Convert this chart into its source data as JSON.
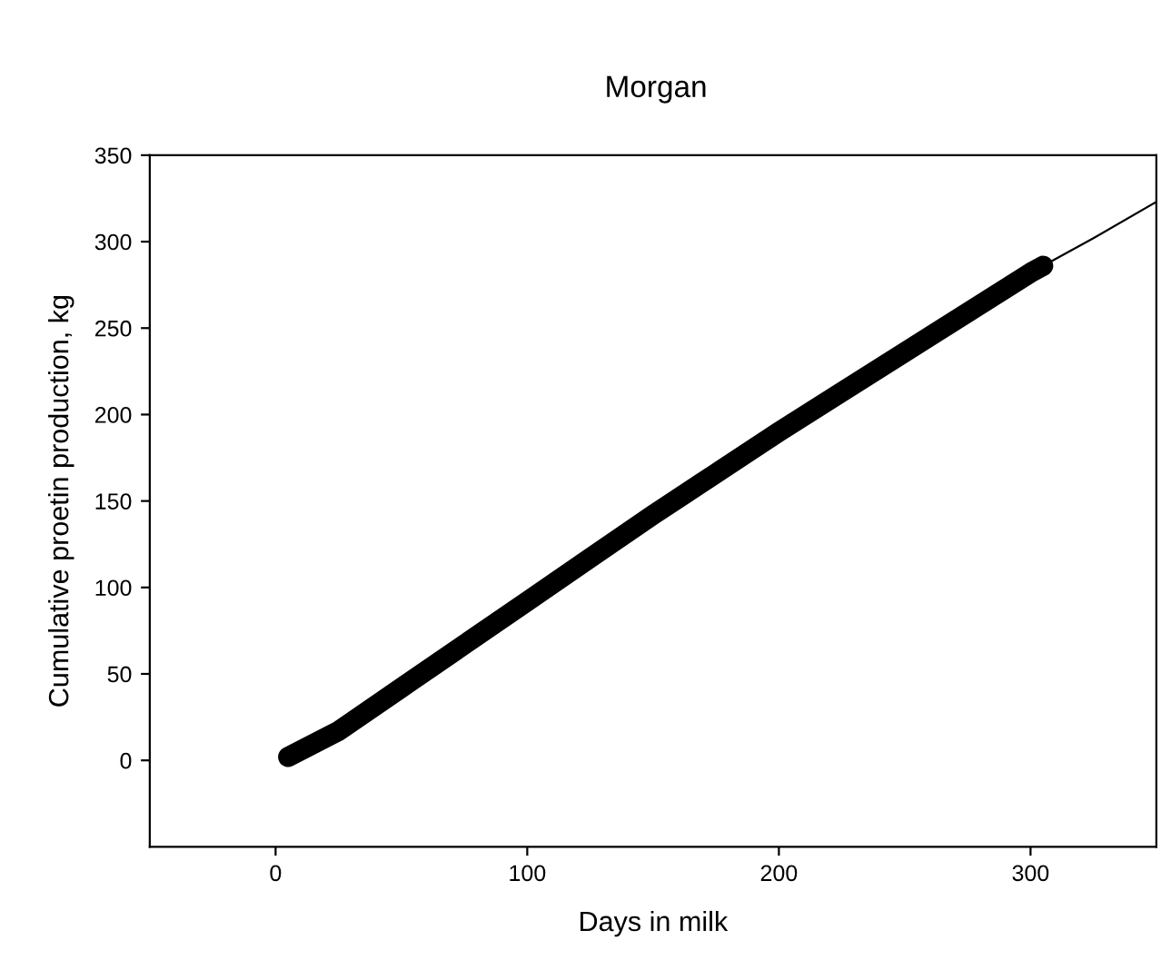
{
  "chart_data": {
    "type": "line",
    "title": "Morgan",
    "xlabel": "Days in milk",
    "ylabel": "Cumulative proetin production, kg",
    "xlim": [
      -50,
      350
    ],
    "ylim": [
      -50,
      350
    ],
    "xticks": [
      0,
      100,
      200,
      300
    ],
    "yticks": [
      0,
      50,
      100,
      150,
      200,
      250,
      300,
      350
    ],
    "grid": false,
    "legend": false,
    "series": [
      {
        "color": "#000000",
        "x": [
          5,
          25,
          50,
          75,
          100,
          125,
          150,
          175,
          200,
          225,
          250,
          275,
          300,
          305
        ],
        "values": [
          2,
          17,
          42,
          67,
          92,
          117,
          142,
          166,
          190,
          213,
          236,
          259,
          282,
          286
        ]
      },
      {
        "color": "#000000",
        "x": [
          5,
          25,
          50,
          75,
          100,
          125,
          150,
          175,
          200,
          225,
          250,
          275,
          300,
          325,
          350
        ],
        "values": [
          2,
          17,
          42,
          67,
          92,
          117,
          142,
          166,
          190,
          213,
          236,
          259,
          282,
          302,
          323
        ]
      }
    ]
  }
}
